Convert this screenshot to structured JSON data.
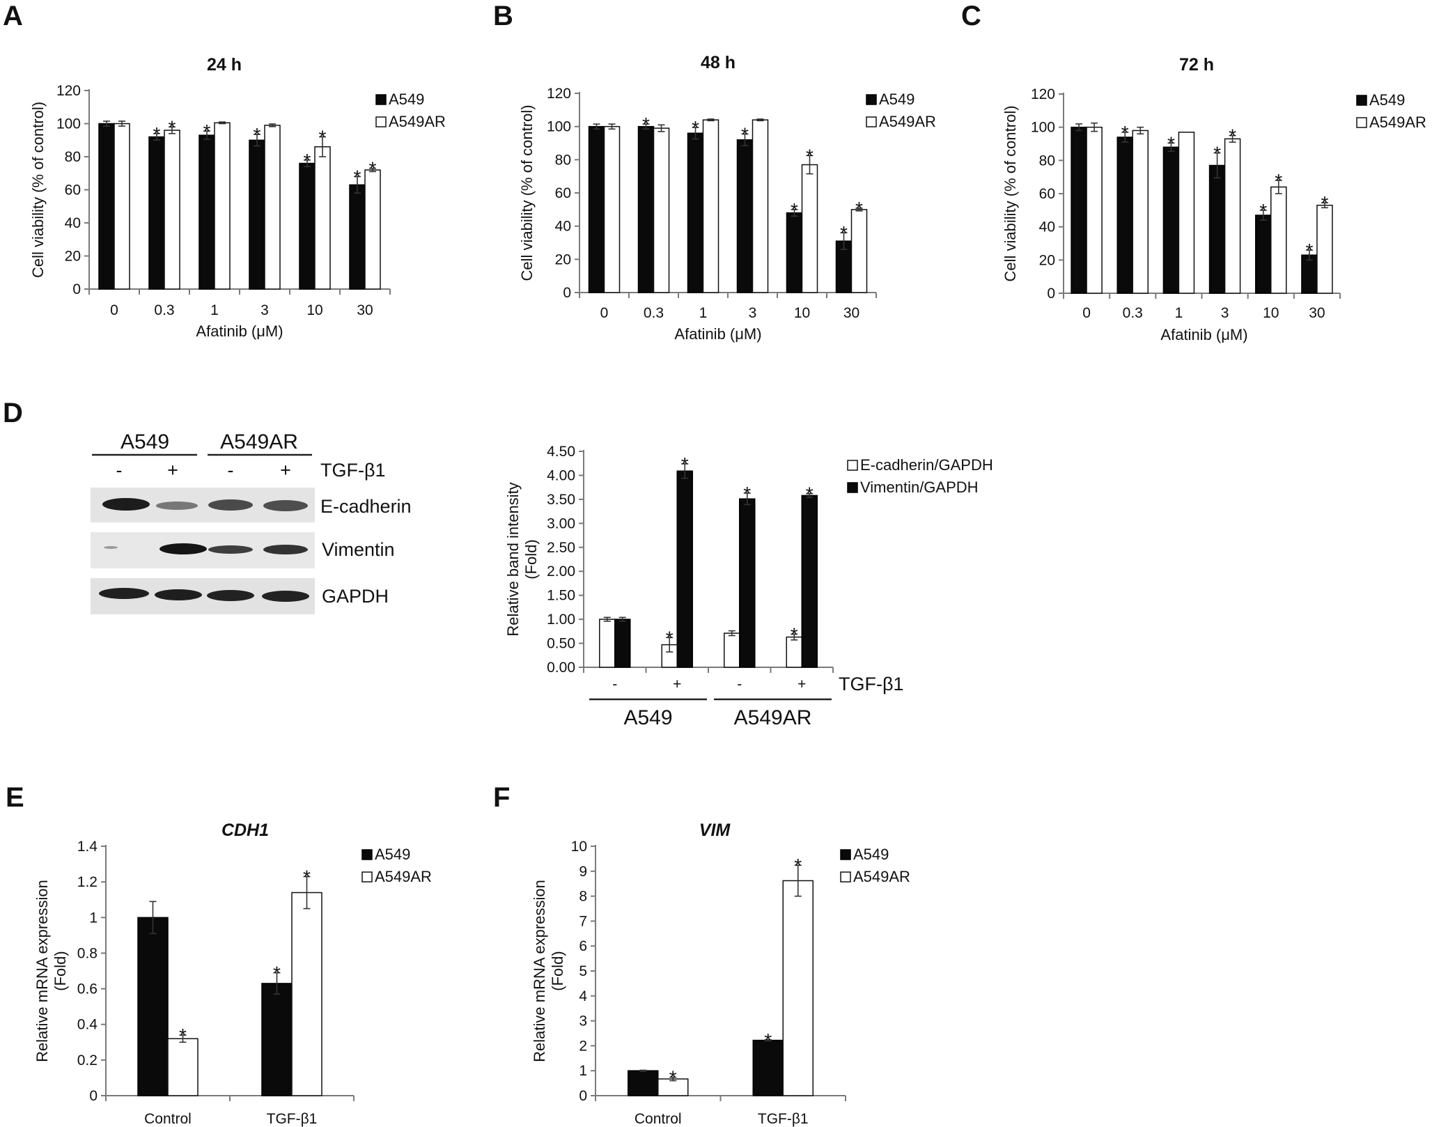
{
  "panels": {
    "A": {
      "letter": "A"
    },
    "B": {
      "letter": "B"
    },
    "C": {
      "letter": "C"
    },
    "D": {
      "letter": "D"
    },
    "E": {
      "letter": "E"
    },
    "F": {
      "letter": "F"
    }
  },
  "blot": {
    "groups": [
      "A549",
      "A549AR"
    ],
    "treatment_label": "TGF-β1",
    "treatment_signs": [
      "-",
      "+",
      "-",
      "+"
    ],
    "rows": [
      "E-cadherin",
      "Vimentin",
      "GAPDH"
    ]
  },
  "colors": {
    "black_series": "#0a0a0a",
    "white_series": "#ffffff",
    "axis": "#7a7a7a"
  },
  "chart_data": [
    {
      "id": "A",
      "type": "bar",
      "title": "24 h",
      "xlabel": "Afatinib (μM)",
      "ylabel": "Cell viability (% of control)",
      "categories": [
        "0",
        "0.3",
        "1",
        "3",
        "10",
        "30"
      ],
      "ylim": [
        0,
        120
      ],
      "yticks": [
        0,
        20,
        40,
        60,
        80,
        100,
        120
      ],
      "legend_position": "top-right",
      "series": [
        {
          "name": "A549",
          "fill": "black",
          "values": [
            100,
            92,
            93,
            90,
            76,
            63
          ],
          "errors": [
            1.5,
            2,
            2.5,
            3.5,
            2,
            5
          ],
          "sig": [
            false,
            true,
            true,
            true,
            true,
            true
          ]
        },
        {
          "name": "A549AR",
          "fill": "white",
          "values": [
            100,
            96,
            100.5,
            99,
            86,
            72
          ],
          "errors": [
            1.5,
            2,
            0.5,
            0.8,
            6,
            1
          ],
          "sig": [
            false,
            true,
            false,
            false,
            true,
            true
          ]
        }
      ]
    },
    {
      "id": "B",
      "type": "bar",
      "title": "48 h",
      "xlabel": "Afatinib (μM)",
      "ylabel": "Cell viability (% of control)",
      "categories": [
        "0",
        "0.3",
        "1",
        "3",
        "10",
        "30"
      ],
      "ylim": [
        0,
        120
      ],
      "yticks": [
        0,
        20,
        40,
        60,
        80,
        100,
        120
      ],
      "legend_position": "top-right",
      "series": [
        {
          "name": "A549",
          "fill": "black",
          "values": [
            100,
            100,
            96,
            92,
            48,
            31
          ],
          "errors": [
            1.5,
            1.5,
            3.5,
            3.5,
            2,
            5
          ],
          "sig": [
            false,
            true,
            true,
            true,
            true,
            true
          ]
        },
        {
          "name": "A549AR",
          "fill": "white",
          "values": [
            100,
            99,
            104,
            104,
            77,
            50
          ],
          "errors": [
            1.5,
            2,
            0.5,
            0.5,
            5.5,
            0.8
          ],
          "sig": [
            false,
            false,
            false,
            false,
            true,
            true
          ]
        }
      ]
    },
    {
      "id": "C",
      "type": "bar",
      "title": "72 h",
      "xlabel": "Afatinib (μM)",
      "ylabel": "Cell viability (% of control)",
      "categories": [
        "0",
        "0.3",
        "1",
        "3",
        "10",
        "30"
      ],
      "ylim": [
        0,
        120
      ],
      "yticks": [
        0,
        20,
        40,
        60,
        80,
        100,
        120
      ],
      "legend_position": "top-right",
      "series": [
        {
          "name": "A549",
          "fill": "black",
          "values": [
            100,
            94,
            88,
            77,
            47,
            23
          ],
          "errors": [
            2,
            3,
            2.5,
            7.5,
            3,
            3
          ],
          "sig": [
            false,
            true,
            true,
            true,
            true,
            true
          ]
        },
        {
          "name": "A549AR",
          "fill": "white",
          "values": [
            100,
            98,
            97,
            93,
            64,
            53
          ],
          "errors": [
            2.5,
            2,
            0,
            2,
            4,
            1.5
          ],
          "sig": [
            false,
            false,
            false,
            true,
            true,
            true
          ]
        }
      ]
    },
    {
      "id": "D",
      "type": "bar",
      "title": "",
      "xlabel": "",
      "ylabel": "Relative band intensity (Fold)",
      "categories": [
        "-",
        "+",
        "-",
        "+"
      ],
      "groups": [
        "A549",
        "A549AR"
      ],
      "treatment_label": "TGF-β1",
      "ylim": [
        0,
        4.5
      ],
      "yticks": [
        "0.00",
        "0.50",
        "1.00",
        "1.50",
        "2.00",
        "2.50",
        "3.00",
        "3.50",
        "4.00",
        "4.50"
      ],
      "legend_position": "top-right",
      "series": [
        {
          "name": "E-cadherin/GAPDH",
          "fill": "white",
          "values": [
            1.0,
            0.47,
            0.71,
            0.63
          ],
          "errors": [
            0.04,
            0.15,
            0.05,
            0.06
          ],
          "sig": [
            false,
            true,
            false,
            true
          ]
        },
        {
          "name": "Vimentin/GAPDH",
          "fill": "black",
          "values": [
            1.0,
            4.09,
            3.51,
            3.58
          ],
          "errors": [
            0.04,
            0.15,
            0.12,
            0.04
          ],
          "sig": [
            false,
            true,
            true,
            true
          ]
        }
      ]
    },
    {
      "id": "E",
      "type": "bar",
      "title": "CDH1",
      "xlabel": "",
      "ylabel": "Relative mRNA expression (Fold)",
      "categories": [
        "Control",
        "TGF-β1"
      ],
      "ylim": [
        0,
        1.4
      ],
      "yticks": [
        "0",
        "0.2",
        "0.4",
        "0.6",
        "0.8",
        "1",
        "1.2",
        "1.4"
      ],
      "legend_position": "top-right",
      "series": [
        {
          "name": "A549",
          "fill": "black",
          "values": [
            1.0,
            0.63
          ],
          "errors": [
            0.09,
            0.06
          ],
          "sig": [
            false,
            true
          ]
        },
        {
          "name": "A549AR",
          "fill": "white",
          "values": [
            0.32,
            1.14
          ],
          "errors": [
            0.02,
            0.09
          ],
          "sig": [
            true,
            true
          ]
        }
      ]
    },
    {
      "id": "F",
      "type": "bar",
      "title": "VIM",
      "xlabel": "",
      "ylabel": "Relative mRNA expression (Fold)",
      "categories": [
        "Control",
        "TGF-β1"
      ],
      "ylim": [
        0,
        10
      ],
      "yticks": [
        "0",
        "1",
        "2",
        "3",
        "4",
        "5",
        "6",
        "7",
        "8",
        "9",
        "10"
      ],
      "legend_position": "top-right",
      "series": [
        {
          "name": "A549",
          "fill": "black",
          "values": [
            1.0,
            2.22
          ],
          "errors": [
            0.02,
            0.02
          ],
          "sig": [
            false,
            true
          ]
        },
        {
          "name": "A549AR",
          "fill": "white",
          "values": [
            0.67,
            8.62
          ],
          "errors": [
            0.07,
            0.62
          ],
          "sig": [
            true,
            true
          ]
        }
      ]
    }
  ]
}
